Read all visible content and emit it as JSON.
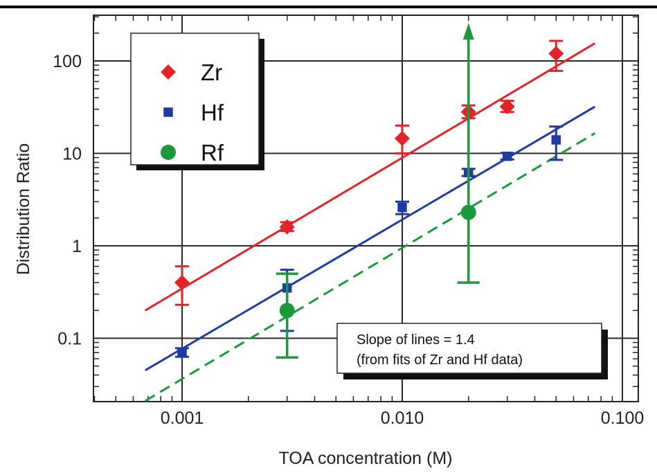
{
  "chart_data": {
    "type": "scatter",
    "xscale": "log",
    "yscale": "log",
    "xlabel": "TOA concentration (M)",
    "ylabel": "Distribution Ratio",
    "xlim": [
      0.0004,
      0.1
    ],
    "ylim": [
      0.02,
      400
    ],
    "xticks": [
      {
        "value": 0.001,
        "label": "0.001"
      },
      {
        "value": 0.01,
        "label": "0.010"
      },
      {
        "value": 0.1,
        "label": "0.100"
      }
    ],
    "yticks": [
      {
        "value": 0.1,
        "label": "0.1"
      },
      {
        "value": 1,
        "label": "1"
      },
      {
        "value": 10,
        "label": "10"
      },
      {
        "value": 100,
        "label": "100"
      }
    ],
    "grid": true,
    "legend_position": "top-left",
    "series": [
      {
        "name": "Zr",
        "color": "#e0242a",
        "marker": "diamond",
        "points": [
          {
            "x": 0.001,
            "y": 0.4,
            "ylow": 0.23,
            "yhigh": 0.6
          },
          {
            "x": 0.003,
            "y": 1.6,
            "ylow": 1.45,
            "yhigh": 1.8
          },
          {
            "x": 0.01,
            "y": 14.5,
            "ylow": 10,
            "yhigh": 20
          },
          {
            "x": 0.02,
            "y": 28,
            "ylow": 24,
            "yhigh": 33
          },
          {
            "x": 0.03,
            "y": 32,
            "ylow": 28,
            "yhigh": 37
          },
          {
            "x": 0.05,
            "y": 120,
            "ylow": 78,
            "yhigh": 165
          }
        ],
        "fit": {
          "x0": 0.00068,
          "x1": 0.075,
          "y0": 0.2,
          "y1": 155,
          "style": "solid"
        }
      },
      {
        "name": "Hf",
        "color": "#1f3aa0",
        "marker": "square",
        "points": [
          {
            "x": 0.001,
            "y": 0.07,
            "ylow": 0.063,
            "yhigh": 0.078
          },
          {
            "x": 0.003,
            "y": 0.35,
            "ylow": 0.12,
            "yhigh": 0.55
          },
          {
            "x": 0.01,
            "y": 2.6,
            "ylow": 2.2,
            "yhigh": 3.0
          },
          {
            "x": 0.02,
            "y": 6.2,
            "ylow": 5.7,
            "yhigh": 6.8
          },
          {
            "x": 0.03,
            "y": 9.3,
            "ylow": 8.6,
            "yhigh": 10.1
          },
          {
            "x": 0.05,
            "y": 14,
            "ylow": 8.5,
            "yhigh": 19.5
          }
        ],
        "fit": {
          "x0": 0.00068,
          "x1": 0.075,
          "y0": 0.045,
          "y1": 32,
          "style": "solid"
        }
      },
      {
        "name": "Rf",
        "color": "#1a9a3a",
        "marker": "circle",
        "points": [
          {
            "x": 0.003,
            "y": 0.2,
            "ylow": 0.062,
            "yhigh": 0.5
          },
          {
            "x": 0.02,
            "y": 2.3,
            "ylow": 0.4,
            "yhigh": 240,
            "upper_arrow": true
          }
        ],
        "fit": {
          "x0": 0.00068,
          "x1": 0.075,
          "y0": 0.021,
          "y1": 16.5,
          "style": "dashed"
        }
      }
    ],
    "annotation": {
      "line1": "Slope of lines = 1.4",
      "line2": "(from fits of Zr and Hf data)"
    }
  },
  "colors": {
    "grid": "#2a2a2a",
    "axis": "#222222"
  }
}
